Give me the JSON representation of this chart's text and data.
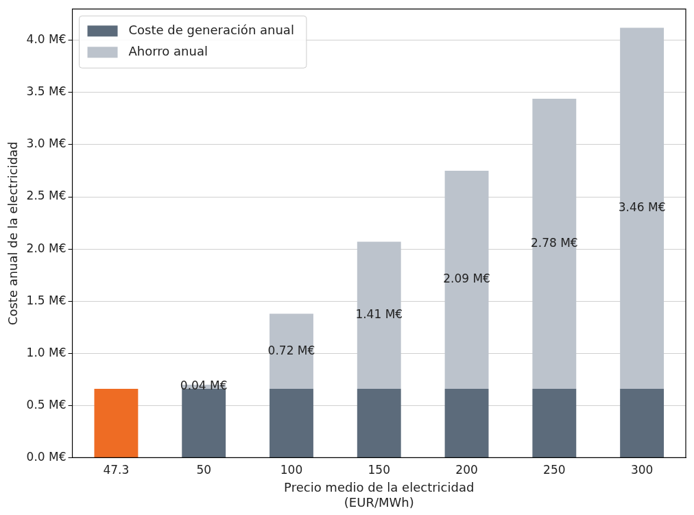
{
  "chart_data": {
    "type": "bar",
    "stacked": true,
    "xlabel": "Precio medio de la electricidad\n(EUR/MWh)",
    "ylabel": "Coste anual de la electricidad",
    "categories": [
      "47.3",
      "50",
      "100",
      "150",
      "200",
      "250",
      "300"
    ],
    "series": [
      {
        "name": "Coste de generación anual",
        "color": "#5c6b7b",
        "colors": [
          "#ee6c24",
          "#5c6b7b",
          "#5c6b7b",
          "#5c6b7b",
          "#5c6b7b",
          "#5c6b7b",
          "#5c6b7b"
        ],
        "values": [
          0.66,
          0.66,
          0.66,
          0.66,
          0.66,
          0.66,
          0.66
        ]
      },
      {
        "name": "Ahorro anual",
        "color": "#bcc3cc",
        "values": [
          null,
          0.04,
          0.72,
          1.41,
          2.09,
          2.78,
          3.46
        ],
        "value_labels": [
          null,
          "0.04 M€",
          "0.72 M€",
          "1.41 M€",
          "2.09 M€",
          "2.78 M€",
          "3.46 M€"
        ]
      }
    ],
    "ylim": [
      0,
      4.3
    ],
    "yticks": [
      {
        "value": 0,
        "label": "0.0 M€"
      },
      {
        "value": 0.5,
        "label": "0.5 M€"
      },
      {
        "value": 1,
        "label": "1.0 M€"
      },
      {
        "value": 1.5,
        "label": "1.5 M€"
      },
      {
        "value": 2,
        "label": "2.0 M€"
      },
      {
        "value": 2.5,
        "label": "2.5 M€"
      },
      {
        "value": 3,
        "label": "3.0 M€"
      },
      {
        "value": 3.5,
        "label": "3.5 M€"
      },
      {
        "value": 4,
        "label": "4.0 M€"
      }
    ],
    "grid": "y",
    "legend": "top left"
  }
}
